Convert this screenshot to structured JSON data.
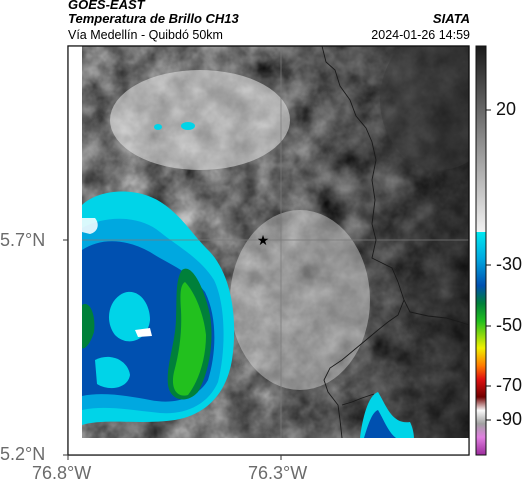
{
  "header": {
    "satellite": "GOES-EAST",
    "product": "Temperatura de Brillo CH13",
    "brand": "SIATA",
    "region": "Vía Medellín - Quibdó 50km",
    "datetime": "2024-01-26 14:59"
  },
  "map": {
    "lat_ticks": [
      "5.7°N",
      "5.2°N"
    ],
    "lon_ticks": [
      "76.8°W",
      "76.3°W"
    ],
    "marker": "star"
  },
  "colorbar": {
    "tick_labels": [
      "20",
      "-30",
      "-50",
      "-70",
      "-90"
    ],
    "colors": {
      "warm_top": "#1a1a1a",
      "warm_bottom": "#f2f2f2",
      "cyan": "#00d4e8",
      "blue": "#0050b0",
      "green": "#22c01e",
      "yellow": "#f0f000",
      "orange": "#ff7a00",
      "red": "#e01010",
      "dark_red": "#700000",
      "magenta": "#c048c0"
    }
  }
}
